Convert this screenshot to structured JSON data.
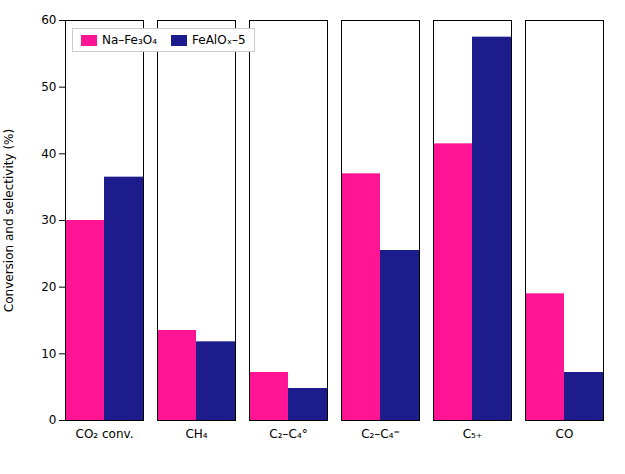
{
  "chart_data": {
    "type": "bar",
    "categories": [
      "CO₂ conv.",
      "CH₄",
      "C₂–C₄°",
      "C₂–C₄⁼",
      "C₅₊",
      "CO"
    ],
    "series": [
      {
        "name": "Na–Fe₃O₄",
        "color": "#FF1493",
        "values": [
          30.0,
          13.5,
          7.2,
          37.0,
          41.5,
          19.0
        ]
      },
      {
        "name": "FeAlOₓ–5",
        "color": "#1C1C8C",
        "values": [
          36.5,
          11.8,
          4.8,
          25.5,
          57.5,
          7.2
        ]
      }
    ],
    "ylabel": "Conversion and selectivity (%)",
    "ylim": [
      0,
      60
    ],
    "yticks": [
      0,
      10,
      20,
      30,
      40,
      50,
      60
    ],
    "grid": false,
    "legend": "upper left"
  }
}
